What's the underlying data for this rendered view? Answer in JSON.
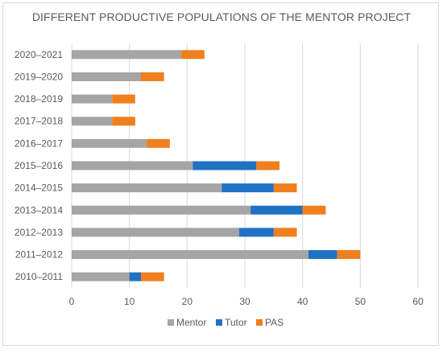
{
  "chart_data": {
    "type": "bar",
    "orientation": "horizontal",
    "stacked": true,
    "title": "DIFFERENT PRODUCTIVE POPULATIONS OF THE MENTOR PROJECT",
    "categories": [
      "2010–2011",
      "2011–2012",
      "2012–2013",
      "2013–2014",
      "2014–2015",
      "2015–2016",
      "2016–2017",
      "2017–2018",
      "2018–2019",
      "2019–2020",
      "2020–2021"
    ],
    "series": [
      {
        "name": "Mentor",
        "color": "#a5a5a5",
        "values": [
          10,
          41,
          29,
          31,
          26,
          21,
          13,
          7,
          7,
          12,
          19
        ]
      },
      {
        "name": "Tutor",
        "color": "#1f72c4",
        "values": [
          2,
          5,
          6,
          9,
          9,
          11,
          0,
          0,
          0,
          0,
          0
        ]
      },
      {
        "name": "PAS",
        "color": "#f07f1e",
        "values": [
          4,
          4,
          4,
          4,
          4,
          4,
          4,
          4,
          4,
          4,
          4
        ]
      }
    ],
    "xlim": [
      0,
      60
    ],
    "xticks": [
      0,
      10,
      20,
      30,
      40,
      50,
      60
    ],
    "grid": true,
    "legend": "bottom"
  }
}
